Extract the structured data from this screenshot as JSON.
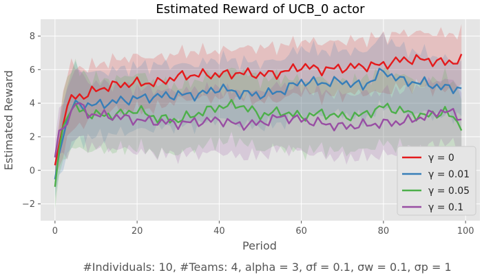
{
  "chart_data": {
    "type": "line",
    "title": "Estimated Reward of UCB_0 actor",
    "xlabel": "Period",
    "ylabel": "Estimated Reward",
    "xlim": [
      0,
      100
    ],
    "ylim": [
      -3,
      9
    ],
    "xticks": [
      0,
      20,
      40,
      60,
      80,
      100
    ],
    "yticks": [
      -2,
      0,
      2,
      4,
      6,
      8
    ],
    "xtick_labels": [
      "0",
      "20",
      "40",
      "60",
      "80",
      "100"
    ],
    "ytick_labels": [
      "−2",
      "0",
      "2",
      "4",
      "6",
      "8"
    ],
    "grid": true,
    "legend_position": "lower-right",
    "caption": "#Individuals: 10,  #Teams: 4,  alpha = 3,  σf = 0.1,  σw = 0.1,  σp = 1",
    "x_anchor": [
      0,
      1,
      2,
      3,
      4,
      5,
      8,
      10,
      15,
      20,
      25,
      30,
      35,
      40,
      45,
      50,
      55,
      60,
      65,
      70,
      75,
      80,
      85,
      90,
      95,
      99
    ],
    "series": [
      {
        "name": "γ = 0",
        "color": "#e41a1c",
        "values": [
          0.3,
          1.5,
          2.8,
          3.8,
          4.3,
          4.4,
          4.5,
          4.8,
          5.1,
          5.2,
          5.2,
          5.6,
          5.7,
          5.7,
          5.8,
          5.7,
          5.8,
          6.2,
          6.0,
          6.1,
          6.2,
          6.3,
          6.6,
          6.6,
          6.4,
          6.6
        ],
        "band_width": [
          0.8,
          1.4,
          1.8,
          2.0,
          2.0,
          1.8,
          1.6,
          1.5,
          1.5,
          1.6,
          1.5,
          1.4,
          1.4,
          1.4,
          1.5,
          1.6,
          1.6,
          1.5,
          1.6,
          1.6,
          1.6,
          1.7,
          1.6,
          1.6,
          1.7,
          1.6
        ]
      },
      {
        "name": "γ = 0.01",
        "color": "#377eb8",
        "values": [
          -0.6,
          1.0,
          2.0,
          3.0,
          3.7,
          3.9,
          3.9,
          3.9,
          4.1,
          4.3,
          4.4,
          4.5,
          4.5,
          4.9,
          4.6,
          4.5,
          4.7,
          5.3,
          5.2,
          5.3,
          5.0,
          5.9,
          5.3,
          5.2,
          4.9,
          4.9
        ],
        "band_width": [
          1.0,
          1.4,
          1.8,
          2.1,
          2.3,
          2.2,
          2.0,
          1.9,
          1.9,
          1.9,
          1.9,
          1.8,
          1.8,
          1.8,
          1.9,
          1.9,
          1.9,
          2.0,
          1.9,
          1.9,
          2.0,
          2.1,
          1.9,
          1.8,
          1.7,
          1.6
        ]
      },
      {
        "name": "γ = 0.05",
        "color": "#4daf4a",
        "values": [
          -1.0,
          1.2,
          2.6,
          3.2,
          3.6,
          3.7,
          3.4,
          3.3,
          3.3,
          3.6,
          3.1,
          3.0,
          3.4,
          3.8,
          3.9,
          3.3,
          3.5,
          3.2,
          3.4,
          3.2,
          3.3,
          3.8,
          3.5,
          3.2,
          3.5,
          2.7
        ],
        "band_width": [
          1.2,
          1.6,
          2.0,
          2.3,
          2.5,
          2.4,
          2.2,
          2.1,
          2.1,
          2.2,
          2.1,
          2.0,
          2.0,
          2.1,
          2.1,
          2.1,
          2.1,
          2.1,
          2.1,
          2.1,
          2.1,
          2.2,
          2.1,
          2.1,
          2.1,
          2.0
        ]
      },
      {
        "name": "γ = 0.1",
        "color": "#984ea3",
        "values": [
          0.8,
          2.3,
          2.5,
          2.8,
          3.5,
          4.1,
          3.4,
          3.3,
          3.2,
          3.0,
          2.9,
          2.8,
          2.9,
          3.0,
          2.7,
          2.8,
          3.2,
          3.0,
          2.8,
          2.6,
          2.7,
          2.8,
          2.9,
          3.2,
          3.6,
          3.1
        ],
        "band_width": [
          1.0,
          1.3,
          1.6,
          1.9,
          2.1,
          2.0,
          1.9,
          1.9,
          1.9,
          1.9,
          1.9,
          1.9,
          1.9,
          1.9,
          1.9,
          1.9,
          1.9,
          1.9,
          1.9,
          1.9,
          1.9,
          1.9,
          1.9,
          1.9,
          1.9,
          1.8
        ]
      }
    ]
  }
}
